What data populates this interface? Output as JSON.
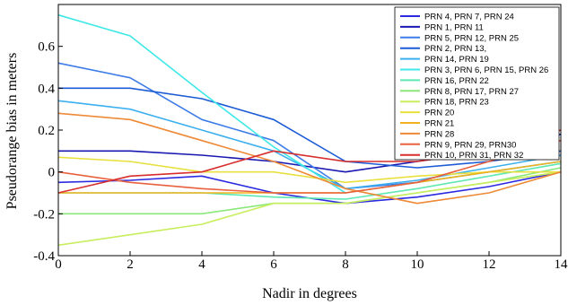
{
  "chart_data": {
    "type": "line",
    "title": "",
    "xlabel": "Nadir in degrees",
    "ylabel": "Pseudorange bias in meters",
    "xlim": [
      0,
      14
    ],
    "ylim": [
      -0.4,
      0.8
    ],
    "x_ticks": [
      "0",
      "2",
      "4",
      "6",
      "8",
      "10",
      "12",
      "14"
    ],
    "y_ticks": [
      "-0.4",
      "-0.2",
      "0",
      "0.2",
      "0.4",
      "0.6"
    ],
    "grid": false,
    "legend_position": "top-right",
    "x": [
      0,
      2,
      4,
      6,
      8,
      10,
      12,
      14
    ],
    "series": [
      {
        "name": "PRN 4, PRN 7, PRN 24",
        "color": "#2a2ae0",
        "values": [
          -0.05,
          -0.04,
          -0.02,
          -0.1,
          -0.15,
          -0.12,
          -0.07,
          0.0
        ]
      },
      {
        "name": "PRN 1, PRN 11",
        "color": "#1818b0",
        "values": [
          0.1,
          0.1,
          0.08,
          0.05,
          0.0,
          0.05,
          0.1,
          0.18
        ]
      },
      {
        "name": "PRN 5, PRN 12, PRN 25",
        "color": "#3e7ce8",
        "values": [
          0.52,
          0.45,
          0.25,
          0.15,
          -0.08,
          -0.05,
          0.0,
          0.05
        ]
      },
      {
        "name": "PRN 2, PRN 13,",
        "color": "#1c5bd6",
        "values": [
          0.4,
          0.4,
          0.35,
          0.25,
          0.05,
          0.02,
          0.05,
          0.1
        ]
      },
      {
        "name": "PRN 14, PRN 19",
        "color": "#3cb0ee",
        "values": [
          0.34,
          0.3,
          0.2,
          0.1,
          -0.08,
          -0.04,
          0.02,
          0.08
        ]
      },
      {
        "name": "PRN 3, PRN 6, PRN 15, PRN 26",
        "color": "#3ee8e8",
        "values": [
          0.75,
          0.65,
          0.38,
          0.12,
          -0.1,
          -0.05,
          0.0,
          0.05
        ]
      },
      {
        "name": "PRN 16, PRN 22",
        "color": "#5ee8b2",
        "values": [
          -0.1,
          -0.1,
          -0.1,
          -0.12,
          -0.13,
          -0.08,
          -0.02,
          0.04
        ]
      },
      {
        "name": "PRN 8, PRN 17, PRN 27",
        "color": "#8ae87a",
        "values": [
          -0.2,
          -0.2,
          -0.2,
          -0.15,
          -0.15,
          -0.1,
          -0.05,
          0.02
        ]
      },
      {
        "name": "PRN 18, PRN 23",
        "color": "#c8ee5e",
        "values": [
          -0.35,
          -0.3,
          -0.25,
          -0.15,
          -0.15,
          -0.1,
          -0.05,
          0.0
        ]
      },
      {
        "name": "PRN 20",
        "color": "#e8e03e",
        "values": [
          0.07,
          0.05,
          0.0,
          0.0,
          -0.05,
          -0.02,
          0.0,
          0.0
        ]
      },
      {
        "name": "PRN 21",
        "color": "#f2b21e",
        "values": [
          -0.1,
          -0.1,
          -0.1,
          -0.1,
          -0.1,
          -0.05,
          0.0,
          0.05
        ]
      },
      {
        "name": "PRN 28",
        "color": "#ee8a36",
        "values": [
          0.28,
          0.25,
          0.15,
          0.05,
          -0.08,
          -0.15,
          -0.1,
          0.0
        ]
      },
      {
        "name": "PRN 9, PRN 29, PRN30",
        "color": "#e8603e",
        "values": [
          0.0,
          -0.05,
          -0.08,
          -0.1,
          -0.1,
          -0.05,
          0.05,
          0.15
        ]
      },
      {
        "name": "PRN 10, PRN 31, PRN 32",
        "color": "#d82e2e",
        "values": [
          -0.1,
          -0.02,
          0.0,
          0.1,
          0.05,
          0.05,
          0.1,
          0.2
        ]
      }
    ]
  }
}
